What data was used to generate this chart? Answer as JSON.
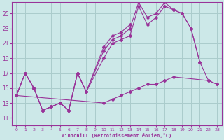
{
  "xlabel": "Windchill (Refroidissement éolien,°C)",
  "bg_color": "#cce8e8",
  "line_color": "#993399",
  "grid_color": "#aacccc",
  "xlim": [
    -0.5,
    23.5
  ],
  "ylim": [
    10.0,
    26.5
  ],
  "xticks": [
    0,
    1,
    2,
    3,
    4,
    5,
    6,
    7,
    8,
    9,
    10,
    11,
    12,
    13,
    14,
    15,
    16,
    17,
    18,
    19,
    20,
    21,
    22,
    23
  ],
  "yticks": [
    11,
    13,
    15,
    17,
    19,
    21,
    23,
    25
  ],
  "line1_x": [
    0,
    1,
    2,
    3,
    4,
    5,
    6,
    7,
    8,
    10,
    11,
    12,
    13,
    14,
    15,
    16,
    17,
    18,
    19,
    20,
    21,
    22,
    23
  ],
  "line1_y": [
    14,
    17,
    15,
    12,
    12.5,
    13,
    12,
    17,
    14.5,
    19,
    21,
    21.5,
    22,
    26,
    23.5,
    24.5,
    26,
    25.5,
    25,
    23,
    18.5,
    16,
    15.5
  ],
  "line2_x": [
    0,
    1,
    2,
    3,
    4,
    5,
    6,
    7,
    8,
    10,
    11,
    12,
    13,
    14,
    15,
    16,
    17,
    18,
    19,
    20,
    21
  ],
  "line2_y": [
    14,
    17,
    15,
    12,
    12.5,
    13,
    12,
    17,
    14.5,
    20,
    21.5,
    22,
    23,
    26.5,
    24.5,
    25,
    26.5,
    25.5,
    25,
    23,
    18.5
  ],
  "line3_x": [
    0,
    1,
    2,
    3,
    4,
    5,
    6,
    7,
    8,
    10,
    11,
    12,
    13
  ],
  "line3_y": [
    14,
    17,
    15,
    12,
    12.5,
    13,
    12,
    17,
    14.5,
    20.5,
    22,
    22.5,
    23.5
  ],
  "line4_x": [
    0,
    10,
    11,
    12,
    13,
    14,
    15,
    16,
    17,
    18,
    22,
    23
  ],
  "line4_y": [
    14,
    13,
    13.5,
    14,
    14.5,
    15,
    15.5,
    15.5,
    16,
    16.5,
    16,
    15.5
  ]
}
